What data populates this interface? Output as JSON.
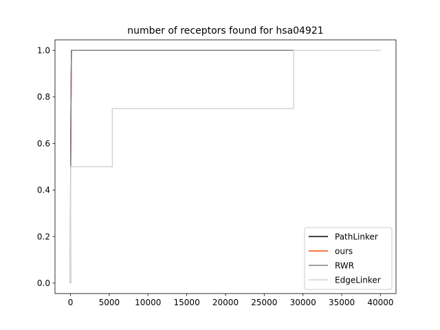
{
  "chart_data": {
    "type": "line",
    "title": "number of receptors found for hsa04921",
    "xlabel": "",
    "ylabel": "",
    "xlim": [
      -2000,
      42000
    ],
    "ylim": [
      -0.045,
      1.045
    ],
    "xticks": [
      0,
      5000,
      10000,
      15000,
      20000,
      25000,
      30000,
      35000,
      40000
    ],
    "xtick_labels": [
      "0",
      "5000",
      "10000",
      "15000",
      "20000",
      "25000",
      "30000",
      "35000",
      "40000"
    ],
    "yticks": [
      0.0,
      0.2,
      0.4,
      0.6,
      0.8,
      1.0
    ],
    "ytick_labels": [
      "0.0",
      "0.2",
      "0.4",
      "0.6",
      "0.8",
      "1.0"
    ],
    "grid": false,
    "legend_position": "bottom-right",
    "series": [
      {
        "name": "PathLinker",
        "color": "#000000",
        "points": [
          [
            0,
            0.0
          ],
          [
            20,
            0.5
          ],
          [
            60,
            0.75
          ],
          [
            120,
            1.0
          ],
          [
            40000,
            1.0
          ]
        ]
      },
      {
        "name": "ours",
        "color": "#ff4500",
        "points": [
          [
            0,
            0.0
          ],
          [
            20,
            0.5
          ],
          [
            60,
            0.75
          ],
          [
            120,
            1.0
          ],
          [
            40000,
            1.0
          ]
        ]
      },
      {
        "name": "RWR",
        "color": "#808080",
        "points": [
          [
            0,
            0.0
          ],
          [
            20,
            0.5
          ],
          [
            60,
            0.75
          ],
          [
            120,
            1.0
          ],
          [
            40000,
            1.0
          ]
        ]
      },
      {
        "name": "EdgeLinker",
        "color": "#d3d3d3",
        "points": [
          [
            0,
            0.0
          ],
          [
            30,
            0.5
          ],
          [
            5400,
            0.5
          ],
          [
            5400,
            0.75
          ],
          [
            28800,
            0.75
          ],
          [
            28800,
            1.0
          ],
          [
            40000,
            1.0
          ]
        ]
      }
    ]
  }
}
